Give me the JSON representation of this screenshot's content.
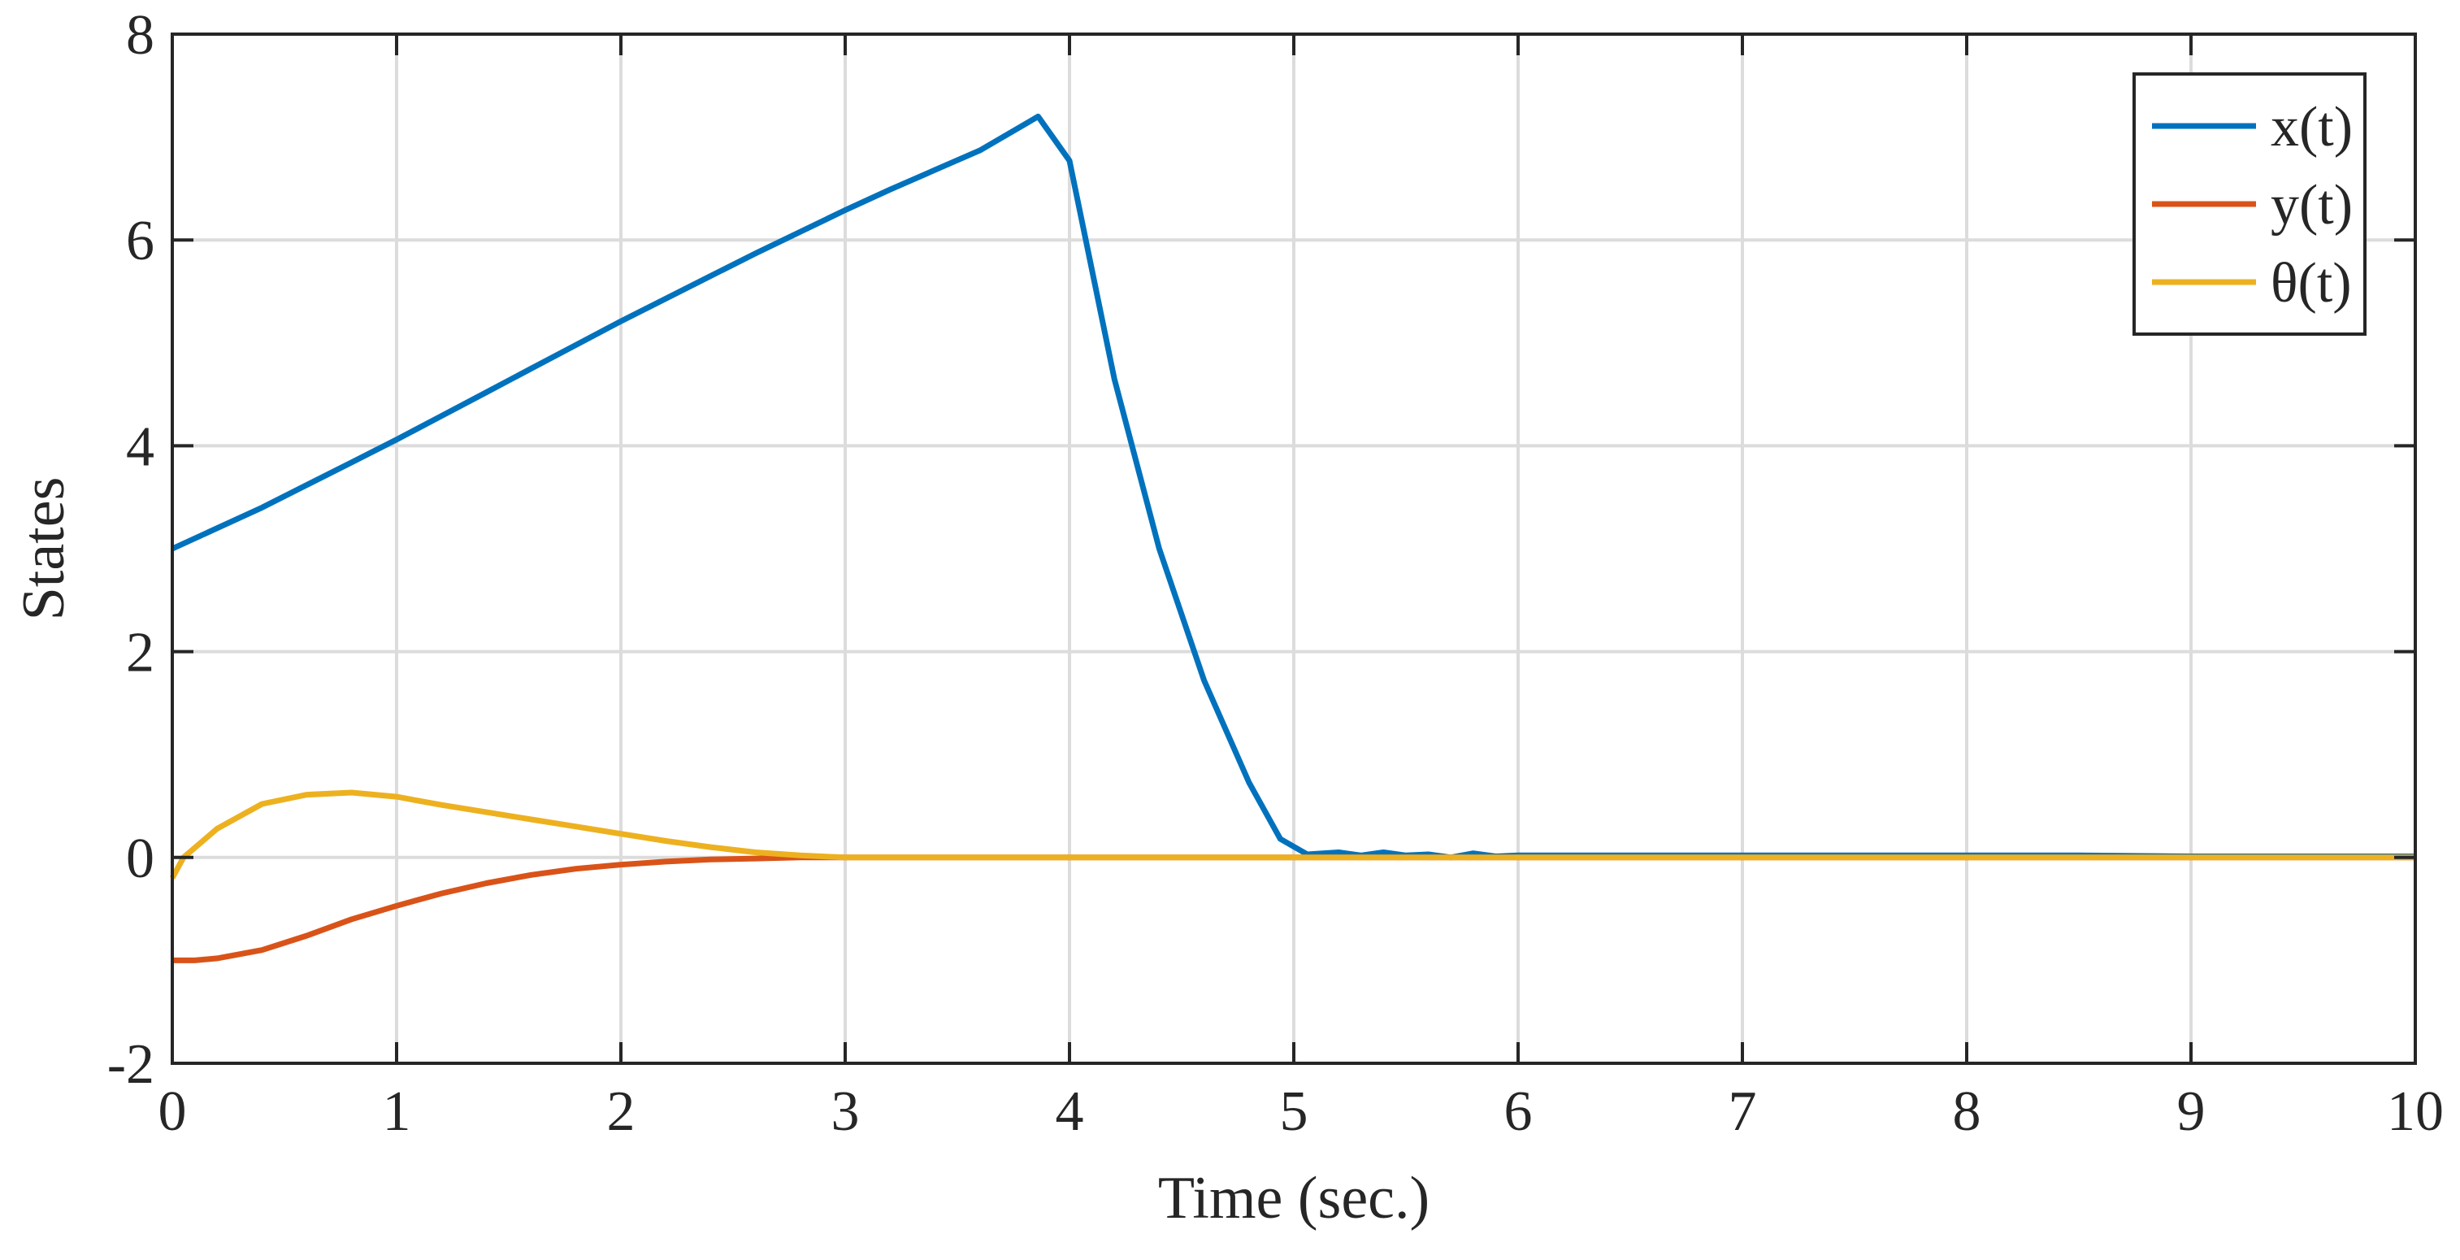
{
  "chart_data": {
    "type": "line",
    "title": "",
    "xlabel": "Time (sec.)",
    "ylabel": "States",
    "xlim": [
      0,
      10
    ],
    "ylim": [
      -2,
      8
    ],
    "xticks": [
      0,
      1,
      2,
      3,
      4,
      5,
      6,
      7,
      8,
      9,
      10
    ],
    "yticks": [
      -2,
      0,
      2,
      4,
      6,
      8
    ],
    "xtick_labels": [
      "0",
      "1",
      "2",
      "3",
      "4",
      "5",
      "6",
      "7",
      "8",
      "9",
      "10"
    ],
    "ytick_labels": [
      "-2",
      "0",
      "2",
      "4",
      "6",
      "8"
    ],
    "grid": true,
    "legend_position": "top-right",
    "series": [
      {
        "name": "x(t)",
        "color": "#0072BD",
        "x": [
          0,
          0.2,
          0.4,
          0.6,
          0.8,
          1.0,
          1.2,
          1.4,
          1.6,
          1.8,
          2.0,
          2.2,
          2.4,
          2.6,
          2.8,
          3.0,
          3.2,
          3.4,
          3.6,
          3.86,
          4.0,
          4.2,
          4.4,
          4.6,
          4.8,
          4.94,
          5.06,
          5.2,
          5.3,
          5.4,
          5.5,
          5.6,
          5.7,
          5.8,
          5.9,
          6.0,
          6.5,
          7.0,
          7.5,
          8.0,
          8.5,
          9.0,
          9.5,
          10.0
        ],
        "y": [
          3.0,
          3.2,
          3.4,
          3.62,
          3.84,
          4.06,
          4.29,
          4.52,
          4.75,
          4.98,
          5.21,
          5.43,
          5.65,
          5.87,
          6.08,
          6.29,
          6.49,
          6.68,
          6.87,
          7.2,
          6.77,
          4.65,
          3.0,
          1.72,
          0.73,
          0.18,
          0.03,
          0.05,
          0.02,
          0.05,
          0.02,
          0.03,
          0.0,
          0.04,
          0.01,
          0.02,
          0.02,
          0.02,
          0.02,
          0.02,
          0.02,
          0.01,
          0.01,
          0.01
        ]
      },
      {
        "name": "y(t)",
        "color": "#D95319",
        "x": [
          0,
          0.1,
          0.2,
          0.4,
          0.6,
          0.8,
          1.0,
          1.2,
          1.4,
          1.6,
          1.8,
          2.0,
          2.2,
          2.4,
          2.6,
          2.8,
          3.0,
          4.0,
          5.0,
          6.0,
          7.0,
          8.0,
          9.0,
          10.0
        ],
        "y": [
          -1.0,
          -1.0,
          -0.98,
          -0.9,
          -0.76,
          -0.6,
          -0.47,
          -0.35,
          -0.25,
          -0.17,
          -0.11,
          -0.07,
          -0.04,
          -0.02,
          -0.01,
          0.0,
          0.0,
          0.0,
          0.0,
          0.0,
          0.0,
          0.0,
          0.0,
          0.0
        ]
      },
      {
        "name": "θ(t)",
        "color": "#EDB120",
        "x": [
          0,
          0.05,
          0.2,
          0.4,
          0.6,
          0.8,
          1.0,
          1.2,
          1.4,
          1.6,
          1.8,
          2.0,
          2.2,
          2.4,
          2.6,
          2.8,
          3.0,
          4.0,
          5.0,
          6.0,
          7.0,
          8.0,
          9.0,
          10.0
        ],
        "y": [
          -0.2,
          0.0,
          0.28,
          0.52,
          0.61,
          0.63,
          0.59,
          0.51,
          0.44,
          0.37,
          0.3,
          0.23,
          0.16,
          0.1,
          0.05,
          0.02,
          0.0,
          0.0,
          0.0,
          0.0,
          0.0,
          0.0,
          0.0,
          0.0
        ]
      }
    ]
  }
}
